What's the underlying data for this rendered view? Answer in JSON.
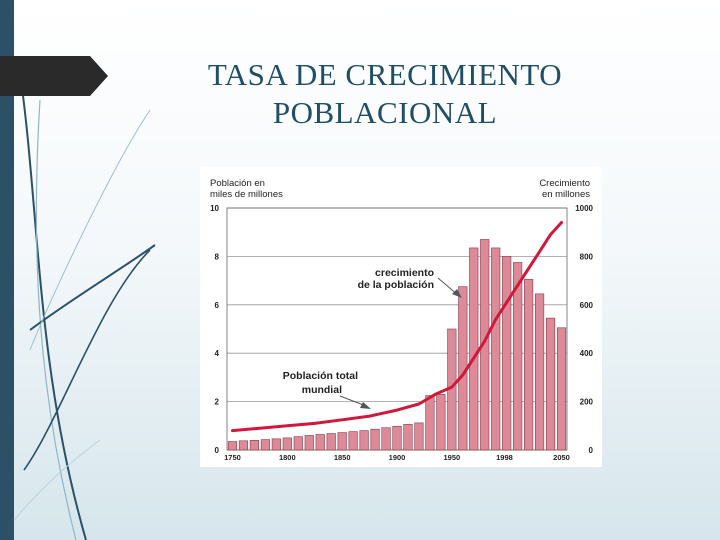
{
  "slide": {
    "title_line1": "TASA DE CRECIMIENTO",
    "title_line2": "POBLACIONAL"
  },
  "colors": {
    "accent_dark": "#2c5066",
    "title": "#1f4e66",
    "bar_fill": "#dd8a98",
    "bar_stroke": "#8a3848",
    "line": "#d0183a"
  },
  "chart_data": {
    "type": "bar",
    "title": "",
    "left_axis": {
      "label_line1": "Población en",
      "label_line2": "miles de millones",
      "range": [
        0,
        10
      ],
      "ticks": [
        "0",
        "2",
        "4",
        "6",
        "8",
        "10"
      ]
    },
    "right_axis": {
      "label_line1": "Crecimiento",
      "label_line2": "en millones",
      "range": [
        0,
        1000
      ],
      "ticks": [
        "0",
        "200",
        "400",
        "600",
        "800",
        "1000"
      ]
    },
    "x_range": [
      1745,
      2055
    ],
    "x_tick_labels": [
      "1750",
      "1800",
      "1850",
      "1900",
      "1950",
      "1998",
      "2050"
    ],
    "x_tick_values": [
      1750,
      1800,
      1850,
      1900,
      1950,
      1998,
      2050
    ],
    "grid": "horizontal",
    "series": [
      {
        "kind": "bar",
        "axis": "right",
        "x": [
          1750,
          1760,
          1770,
          1780,
          1790,
          1800,
          1810,
          1820,
          1830,
          1840,
          1850,
          1860,
          1870,
          1880,
          1890,
          1900,
          1910,
          1920,
          1930,
          1940,
          1950,
          1960,
          1970,
          1980,
          1990,
          2000,
          2010,
          2020,
          2030,
          2040,
          2050
        ],
        "values": [
          35,
          38,
          40,
          43,
          46,
          50,
          55,
          60,
          64,
          68,
          72,
          76,
          80,
          86,
          92,
          98,
          106,
          112,
          225,
          230,
          500,
          675,
          835,
          870,
          835,
          800,
          775,
          705,
          645,
          545,
          505
        ]
      },
      {
        "kind": "line",
        "axis": "left",
        "x": [
          1750,
          1775,
          1800,
          1825,
          1850,
          1875,
          1900,
          1920,
          1935,
          1950,
          1960,
          1970,
          1980,
          1990,
          2000,
          2010,
          2020,
          2030,
          2040,
          2050
        ],
        "values": [
          0.8,
          0.9,
          1.0,
          1.1,
          1.25,
          1.4,
          1.65,
          1.9,
          2.3,
          2.6,
          3.1,
          3.8,
          4.5,
          5.4,
          6.1,
          6.8,
          7.5,
          8.2,
          8.9,
          9.4
        ]
      }
    ],
    "annotations": [
      {
        "line1": "crecimiento",
        "line2": "de la población",
        "points_to": "bars"
      },
      {
        "line1": "Población total",
        "line2": "mundial",
        "points_to": "line"
      }
    ]
  }
}
